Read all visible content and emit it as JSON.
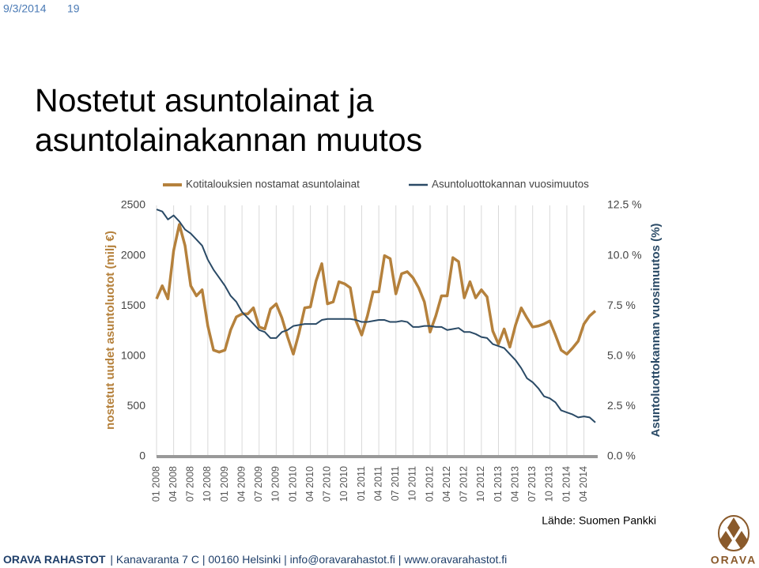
{
  "slide": {
    "date": "9/3/2014",
    "page": "19",
    "title_lines": [
      "Nostetut asuntolainat ja",
      "asuntolainakannan muutos"
    ],
    "source": "Lähde: Suomen Pankki",
    "footer_brand": "ORAVA RAHASTOT",
    "footer_text": "| Kanavaranta 7 C | 00160 Helsinki | info@oravarahastot.fi | www.oravarahastot.fi",
    "logo_text": "ORAVA"
  },
  "chart_data": {
    "type": "line",
    "y_label": "nostetut uudet asuntoluotot (milj €)",
    "y2_label": "Asuntoluottokannan vuosimuutos (%)",
    "legend": "top",
    "grid": "x",
    "categories": [
      "01 2008",
      null,
      null,
      "04 2008",
      null,
      null,
      "07 2008",
      null,
      null,
      "10 2008",
      null,
      null,
      "01 2009",
      null,
      null,
      "04 2009",
      null,
      null,
      "07 2009",
      null,
      null,
      "10 2009",
      null,
      null,
      "01 2010",
      null,
      null,
      "04 2010",
      null,
      null,
      "07 2010",
      null,
      null,
      "10 2010",
      null,
      null,
      "01 2011",
      null,
      null,
      "04 2011",
      null,
      null,
      "07 2011",
      null,
      null,
      "10 2011",
      null,
      null,
      "01 2012",
      null,
      null,
      "04 2012",
      null,
      null,
      "07 2012",
      null,
      null,
      "10 2012",
      null,
      null,
      "01 2013",
      null,
      null,
      "04 2013",
      null,
      null,
      "07 2013",
      null,
      null,
      "10 2013",
      null,
      null,
      "01 2014",
      null,
      null,
      "04 2014",
      null,
      null
    ],
    "ylim": [
      0,
      2500
    ],
    "yticks": [
      0,
      500,
      1000,
      1500,
      2000,
      2500
    ],
    "y2lim": [
      0,
      12.5
    ],
    "y2ticks": [
      {
        "value": 0,
        "label": "0.0 %"
      },
      {
        "value": 2.5,
        "label": "2.5 %"
      },
      {
        "value": 5,
        "label": "5.0 %"
      },
      {
        "value": 7.5,
        "label": "7.5 %"
      },
      {
        "value": 10,
        "label": "10.0 %"
      },
      {
        "value": 12.5,
        "label": "12.5 %"
      }
    ],
    "series": [
      {
        "name": "Kotitalouksien nostamat asuntolainat",
        "color": "#b5813c",
        "axis": "y",
        "values": [
          1570,
          1700,
          1570,
          2050,
          2310,
          2100,
          1700,
          1600,
          1660,
          1300,
          1060,
          1040,
          1060,
          1260,
          1390,
          1420,
          1420,
          1480,
          1290,
          1270,
          1470,
          1520,
          1380,
          1190,
          1020,
          1230,
          1480,
          1490,
          1750,
          1920,
          1520,
          1540,
          1740,
          1720,
          1680,
          1350,
          1210,
          1400,
          1640,
          1640,
          2000,
          1970,
          1620,
          1820,
          1840,
          1780,
          1680,
          1540,
          1240,
          1400,
          1600,
          1600,
          1980,
          1940,
          1580,
          1740,
          1580,
          1660,
          1590,
          1250,
          1120,
          1270,
          1090,
          1310,
          1480,
          1380,
          1290,
          1300,
          1320,
          1350,
          1210,
          1060,
          1020,
          1080,
          1150,
          1320,
          1400,
          1450
        ]
      },
      {
        "name": "Asuntoluottokannan vuosimuutos",
        "color": "#2a4a66",
        "axis": "y2",
        "values": [
          12.3,
          12.2,
          11.8,
          12.0,
          11.7,
          11.3,
          11.1,
          10.8,
          10.5,
          9.8,
          9.3,
          8.9,
          8.5,
          8.0,
          7.7,
          7.2,
          6.9,
          6.6,
          6.3,
          6.2,
          5.9,
          5.9,
          6.2,
          6.3,
          6.5,
          6.55,
          6.6,
          6.6,
          6.6,
          6.8,
          6.85,
          6.85,
          6.85,
          6.85,
          6.85,
          6.8,
          6.7,
          6.7,
          6.75,
          6.8,
          6.8,
          6.7,
          6.7,
          6.75,
          6.7,
          6.45,
          6.45,
          6.5,
          6.5,
          6.45,
          6.45,
          6.3,
          6.35,
          6.4,
          6.2,
          6.2,
          6.1,
          5.95,
          5.9,
          5.6,
          5.5,
          5.4,
          5.1,
          4.8,
          4.4,
          3.9,
          3.7,
          3.4,
          3.0,
          2.9,
          2.7,
          2.3,
          2.2,
          2.1,
          1.95,
          2.0,
          1.95,
          1.7
        ]
      }
    ]
  }
}
